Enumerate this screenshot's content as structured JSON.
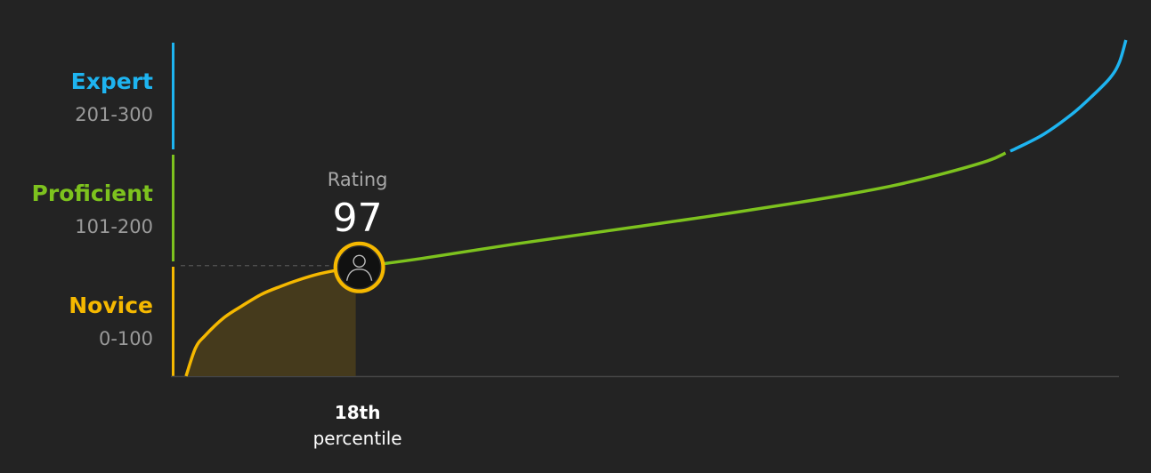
{
  "chart_data": {
    "type": "line",
    "xlabel": "",
    "ylabel": "",
    "xlim": [
      0,
      100
    ],
    "ylim": [
      0,
      300
    ],
    "grid": false,
    "colors": {
      "background": "#232323",
      "novice": "#F5B800",
      "proficient": "#7DC21E",
      "expert": "#1EB4F0",
      "area_fill": "#453A1C",
      "baseline": "#444444",
      "guide": "#555555",
      "marker_ring": "#F5B800",
      "marker_fill": "#111111",
      "marker_icon": "#bbbbbb"
    },
    "bands": [
      {
        "key": "expert",
        "name": "Expert",
        "range": "201-300",
        "min": 201,
        "max": 300,
        "color": "#1EB4F0"
      },
      {
        "key": "proficient",
        "name": "Proficient",
        "range": "101-200",
        "min": 101,
        "max": 200,
        "color": "#7DC21E"
      },
      {
        "key": "novice",
        "name": "Novice",
        "range": "0-100",
        "min": 0,
        "max": 100,
        "color": "#F5B800"
      }
    ],
    "curve": {
      "x": [
        0,
        1,
        2,
        4,
        6,
        8,
        10,
        12,
        14,
        16,
        18,
        25,
        35,
        45,
        55,
        65,
        70,
        75,
        80,
        85,
        88,
        91,
        94,
        96,
        98,
        99,
        99.7
      ],
      "y": [
        0,
        25,
        36,
        52,
        63,
        73,
        80,
        86,
        91,
        94.5,
        97,
        105,
        118,
        130,
        142,
        155,
        162,
        170,
        180,
        192,
        203,
        216,
        234,
        249,
        266,
        280,
        300
      ]
    },
    "marker": {
      "percentile": 18,
      "rating": 97,
      "rating_label": "Rating",
      "rating_value": "97",
      "percentile_value": "18th",
      "percentile_label": "percentile",
      "icon": "user-avatar-icon"
    }
  }
}
